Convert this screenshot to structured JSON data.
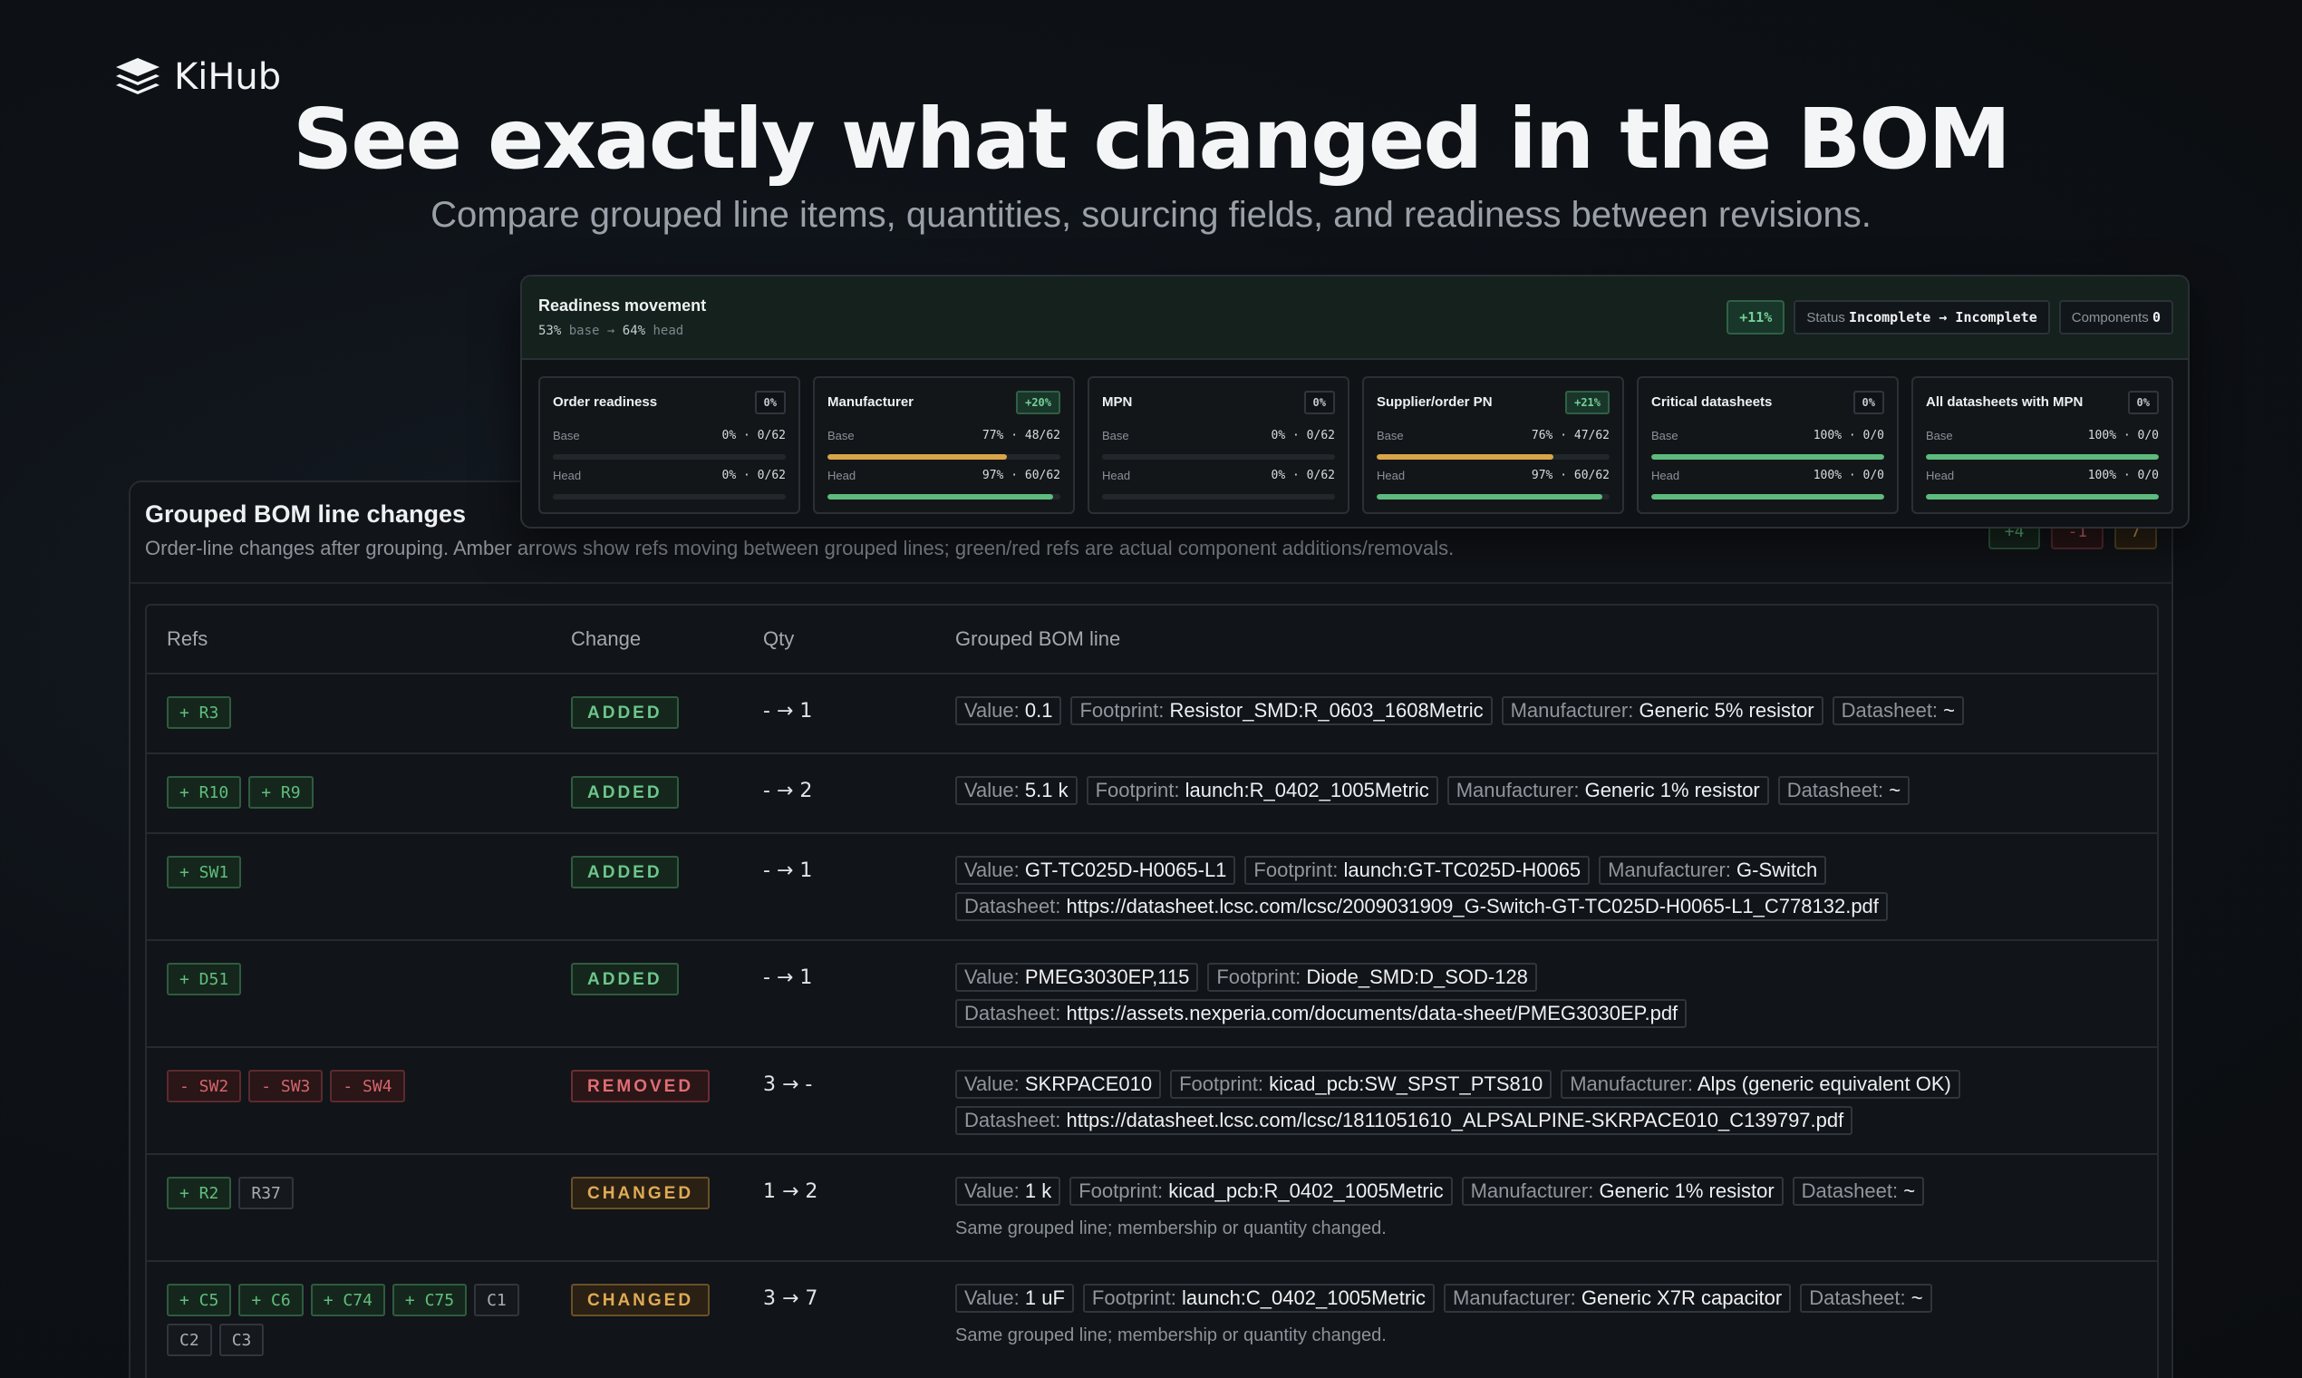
{
  "brand": {
    "name": "KiHub"
  },
  "hero": {
    "title": "See exactly what changed in the BOM",
    "subtitle": "Compare grouped line items, quantities, sourcing fields, and readiness between revisions."
  },
  "readiness": {
    "title": "Readiness movement",
    "base_pct": "53%",
    "base_label": "base",
    "arrow": "→",
    "head_pct": "64%",
    "head_label": "head",
    "delta": "+11%",
    "status_label": "Status",
    "status_value": "Incomplete → Incomplete",
    "components_label": "Components",
    "components_value": "0",
    "cards": [
      {
        "title": "Order readiness",
        "delta": "0%",
        "positive": false,
        "base_label": "Base",
        "base_value": "0% · 0/62",
        "base_fraction": 0.0,
        "base_color": "amber",
        "head_label": "Head",
        "head_value": "0% · 0/62",
        "head_fraction": 0.0,
        "head_color": "green"
      },
      {
        "title": "Manufacturer",
        "delta": "+20%",
        "positive": true,
        "base_label": "Base",
        "base_value": "77% · 48/62",
        "base_fraction": 0.77,
        "base_color": "amber",
        "head_label": "Head",
        "head_value": "97% · 60/62",
        "head_fraction": 0.97,
        "head_color": "green"
      },
      {
        "title": "MPN",
        "delta": "0%",
        "positive": false,
        "base_label": "Base",
        "base_value": "0% · 0/62",
        "base_fraction": 0.0,
        "base_color": "amber",
        "head_label": "Head",
        "head_value": "0% · 0/62",
        "head_fraction": 0.0,
        "head_color": "green"
      },
      {
        "title": "Supplier/order PN",
        "delta": "+21%",
        "positive": true,
        "base_label": "Base",
        "base_value": "76% · 47/62",
        "base_fraction": 0.76,
        "base_color": "amber",
        "head_label": "Head",
        "head_value": "97% · 60/62",
        "head_fraction": 0.97,
        "head_color": "green"
      },
      {
        "title": "Critical datasheets",
        "delta": "0%",
        "positive": false,
        "base_label": "Base",
        "base_value": "100% · 0/0",
        "base_fraction": 1.0,
        "base_color": "green",
        "head_label": "Head",
        "head_value": "100% · 0/0",
        "head_fraction": 1.0,
        "head_color": "green"
      },
      {
        "title": "All datasheets with MPN",
        "delta": "0%",
        "positive": false,
        "base_label": "Base",
        "base_value": "100% · 0/0",
        "base_fraction": 1.0,
        "base_color": "green",
        "head_label": "Head",
        "head_value": "100% · 0/0",
        "head_fraction": 1.0,
        "head_color": "green"
      }
    ]
  },
  "bom": {
    "title": "Grouped BOM line changes",
    "description": "Order-line changes after grouping. Amber arrows show refs moving between grouped lines; green/red refs are actual component additions/removals.",
    "summary_pills": [
      "+4",
      "-1",
      "7"
    ],
    "columns": [
      "Refs",
      "Change",
      "Qty",
      "Grouped BOM line"
    ],
    "rows": [
      {
        "refs": [
          {
            "t": "+ R3",
            "k": "add"
          }
        ],
        "change": "ADDED",
        "kind": "added",
        "qty": "- → 1",
        "fields": [
          [
            "Value:",
            "0.1"
          ],
          [
            "Footprint:",
            "Resistor_SMD:R_0603_1608Metric"
          ],
          [
            "Manufacturer:",
            "Generic 5% resistor"
          ],
          [
            "Datasheet:",
            "~"
          ]
        ],
        "note": ""
      },
      {
        "refs": [
          {
            "t": "+ R10",
            "k": "add"
          },
          {
            "t": "+ R9",
            "k": "add"
          }
        ],
        "change": "ADDED",
        "kind": "added",
        "qty": "- → 2",
        "fields": [
          [
            "Value:",
            "5.1 k"
          ],
          [
            "Footprint:",
            "launch:R_0402_1005Metric"
          ],
          [
            "Manufacturer:",
            "Generic 1% resistor"
          ],
          [
            "Datasheet:",
            "~"
          ]
        ],
        "note": ""
      },
      {
        "refs": [
          {
            "t": "+ SW1",
            "k": "add"
          }
        ],
        "change": "ADDED",
        "kind": "added",
        "qty": "- → 1",
        "fields": [
          [
            "Value:",
            "GT-TC025D-H0065-L1"
          ],
          [
            "Footprint:",
            "launch:GT-TC025D-H0065"
          ],
          [
            "Manufacturer:",
            "G-Switch"
          ],
          [
            "Datasheet:",
            "https://datasheet.lcsc.com/lcsc/2009031909_G-Switch-GT-TC025D-H0065-L1_C778132.pdf"
          ]
        ],
        "note": ""
      },
      {
        "refs": [
          {
            "t": "+ D51",
            "k": "add"
          }
        ],
        "change": "ADDED",
        "kind": "added",
        "qty": "- → 1",
        "fields": [
          [
            "Value:",
            "PMEG3030EP,115"
          ],
          [
            "Footprint:",
            "Diode_SMD:D_SOD-128"
          ],
          [
            "Datasheet:",
            "https://assets.nexperia.com/documents/data-sheet/PMEG3030EP.pdf"
          ]
        ],
        "note": ""
      },
      {
        "refs": [
          {
            "t": "- SW2",
            "k": "rem"
          },
          {
            "t": "- SW3",
            "k": "rem"
          },
          {
            "t": "- SW4",
            "k": "rem"
          }
        ],
        "change": "REMOVED",
        "kind": "removed",
        "qty": "3 → -",
        "fields": [
          [
            "Value:",
            "SKRPACE010"
          ],
          [
            "Footprint:",
            "kicad_pcb:SW_SPST_PTS810"
          ],
          [
            "Manufacturer:",
            "Alps (generic equivalent OK)"
          ],
          [
            "Datasheet:",
            "https://datasheet.lcsc.com/lcsc/1811051610_ALPSALPINE-SKRPACE010_C139797.pdf"
          ]
        ],
        "note": ""
      },
      {
        "refs": [
          {
            "t": "+ R2",
            "k": "add"
          },
          {
            "t": "R37",
            "k": "neu"
          }
        ],
        "change": "CHANGED",
        "kind": "changed",
        "qty": "1 → 2",
        "fields": [
          [
            "Value:",
            "1 k"
          ],
          [
            "Footprint:",
            "kicad_pcb:R_0402_1005Metric"
          ],
          [
            "Manufacturer:",
            "Generic 1% resistor"
          ],
          [
            "Datasheet:",
            "~"
          ]
        ],
        "note": "Same grouped line; membership or quantity changed."
      },
      {
        "refs": [
          {
            "t": "+ C5",
            "k": "add"
          },
          {
            "t": "+ C6",
            "k": "add"
          },
          {
            "t": "+ C74",
            "k": "add"
          },
          {
            "t": "+ C75",
            "k": "add"
          },
          {
            "t": "C1",
            "k": "neu"
          },
          {
            "t": "C2",
            "k": "neu"
          },
          {
            "t": "C3",
            "k": "neu"
          }
        ],
        "change": "CHANGED",
        "kind": "changed",
        "qty": "3 → 7",
        "fields": [
          [
            "Value:",
            "1 uF"
          ],
          [
            "Footprint:",
            "launch:C_0402_1005Metric"
          ],
          [
            "Manufacturer:",
            "Generic X7R capacitor"
          ],
          [
            "Datasheet:",
            "~"
          ]
        ],
        "note": "Same grouped line; membership or quantity changed."
      }
    ]
  }
}
